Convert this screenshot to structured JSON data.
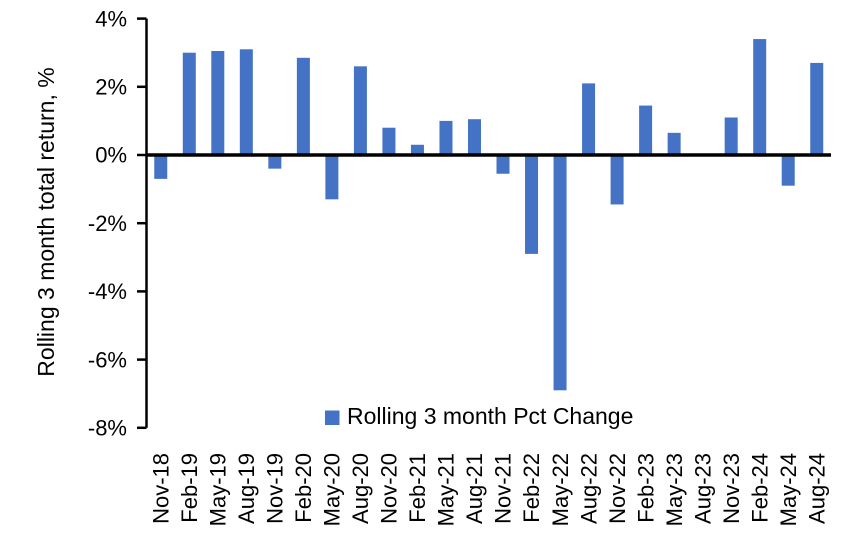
{
  "chart_data": {
    "type": "bar",
    "title": "",
    "ylabel": "Rolling 3 month total return, %",
    "xlabel": "",
    "legend_label": "Rolling 3 month Pct Change",
    "legend_position": "bottom-center",
    "legend_marker": "square-icon",
    "grid": false,
    "bar_color": "#4472C4",
    "axis_color": "#000000",
    "ylim": [
      -8,
      4
    ],
    "yticks": [
      4,
      2,
      0,
      -2,
      -4,
      -6,
      -8
    ],
    "ytick_labels": [
      "4%",
      "2%",
      "0%",
      "-2%",
      "-4%",
      "-6%",
      "-8%"
    ],
    "categories": [
      "Nov-18",
      "Feb-19",
      "May-19",
      "Aug-19",
      "Nov-19",
      "Feb-20",
      "May-20",
      "Aug-20",
      "Nov-20",
      "Feb-21",
      "May-21",
      "Aug-21",
      "Nov-21",
      "Feb-22",
      "May-22",
      "Aug-22",
      "Nov-22",
      "Feb-23",
      "May-23",
      "Aug-23",
      "Nov-23",
      "Feb-24",
      "May-24",
      "Aug-24"
    ],
    "values": [
      -0.7,
      3.0,
      3.05,
      3.1,
      -0.4,
      2.85,
      -1.3,
      2.6,
      0.8,
      0.3,
      1.0,
      1.05,
      -0.55,
      -2.9,
      -6.9,
      2.1,
      -1.45,
      1.45,
      0.65,
      0.0,
      1.1,
      3.4,
      -0.9,
      2.7
    ]
  }
}
